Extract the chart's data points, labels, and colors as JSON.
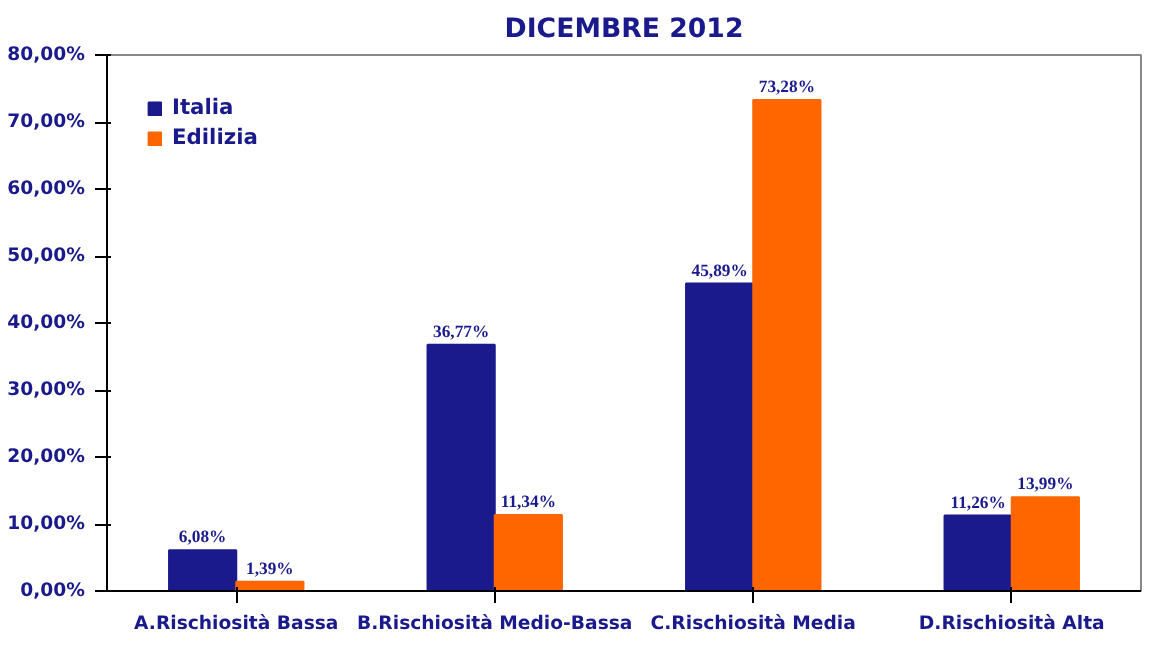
{
  "chart_data": {
    "type": "bar",
    "title": "DICEMBRE 2012",
    "categories": [
      "A.Rischiosità Bassa",
      "B.Rischiosità Medio-Bassa",
      "C.Rischiosità Media",
      "D.Rischiosità Alta"
    ],
    "series": [
      {
        "name": "Italia",
        "color": "#1a1a8c",
        "values": [
          6.08,
          36.77,
          45.89,
          11.26
        ],
        "value_labels": [
          "6,08%",
          "36,77%",
          "45,89%",
          "11,26%"
        ]
      },
      {
        "name": "Edilizia",
        "color": "#ff6600",
        "values": [
          1.39,
          11.34,
          73.28,
          13.99
        ],
        "value_labels": [
          "1,39%",
          "11,34%",
          "73,28%",
          "13,99%"
        ]
      }
    ],
    "ylim": [
      0,
      80
    ],
    "yticks": [
      {
        "value": 0,
        "label": "0,00%"
      },
      {
        "value": 10,
        "label": "10,00%"
      },
      {
        "value": 20,
        "label": "20,00%"
      },
      {
        "value": 30,
        "label": "30,00%"
      },
      {
        "value": 40,
        "label": "40,00%"
      },
      {
        "value": 50,
        "label": "50,00%"
      },
      {
        "value": 60,
        "label": "60,00%"
      },
      {
        "value": 70,
        "label": "70,00%"
      },
      {
        "value": 80,
        "label": "80,00%"
      }
    ],
    "grid": false,
    "legend": "top left"
  }
}
